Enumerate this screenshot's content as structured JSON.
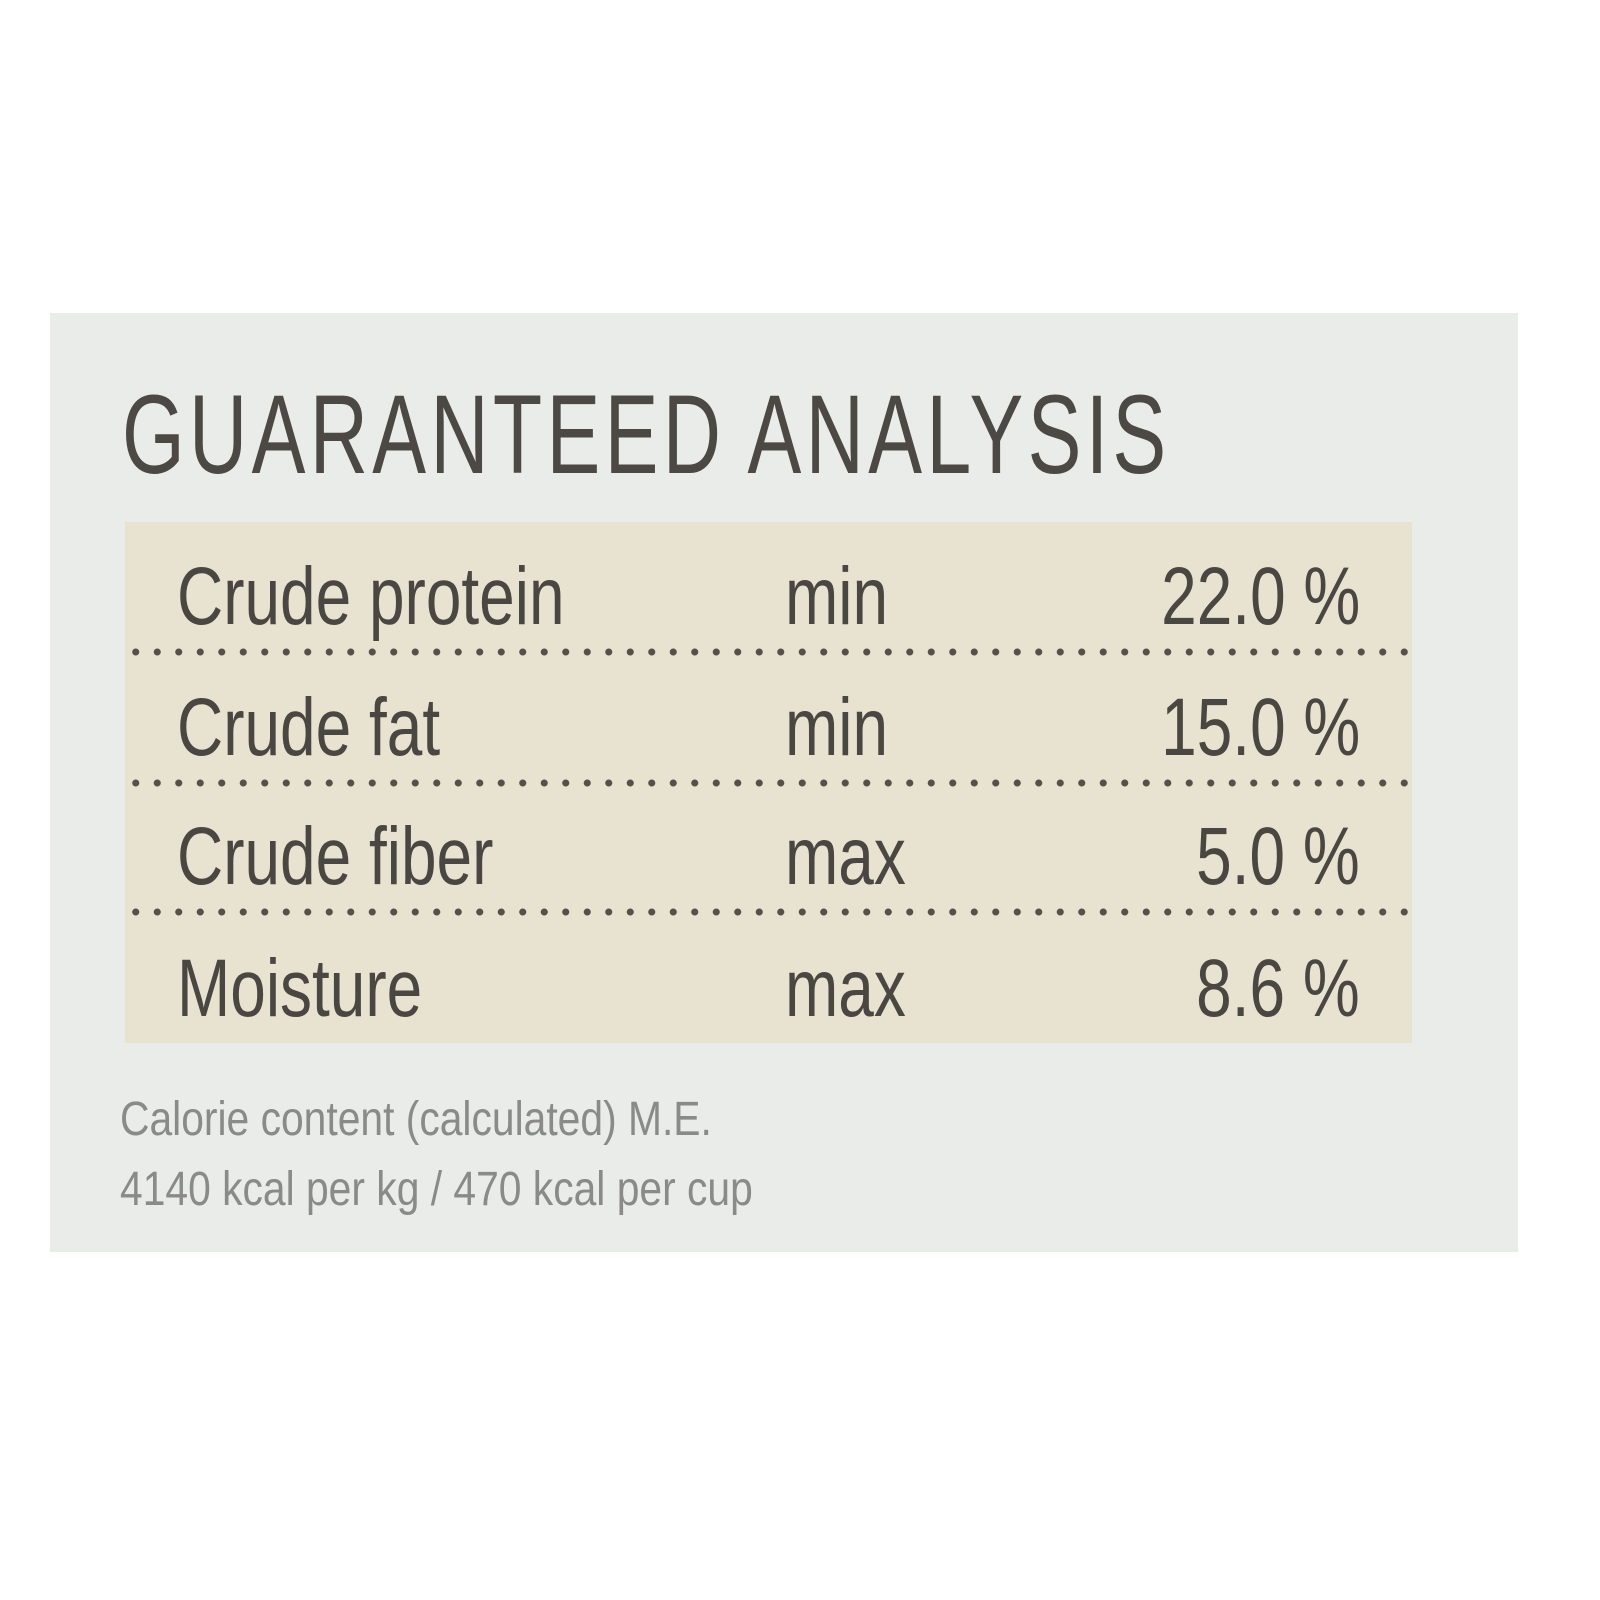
{
  "title": "GUARANTEED ANALYSIS",
  "rows": [
    {
      "name": "Crude protein",
      "qualifier": "min",
      "value": "22.0 %"
    },
    {
      "name": "Crude fat",
      "qualifier": "min",
      "value": "15.0 %"
    },
    {
      "name": "Crude fiber",
      "qualifier": "max",
      "value": "5.0 %"
    },
    {
      "name": "Moisture",
      "qualifier": "max",
      "value": "8.6 %"
    }
  ],
  "footer": {
    "line1": "Calorie content (calculated) M.E.",
    "line2": "4140 kcal per kg / 470 kcal per cup"
  },
  "colors": {
    "panel": "#e9ece8",
    "table_bg": "#e8e2d0",
    "text": "#4a4641",
    "footer_text": "#8a8a86"
  }
}
